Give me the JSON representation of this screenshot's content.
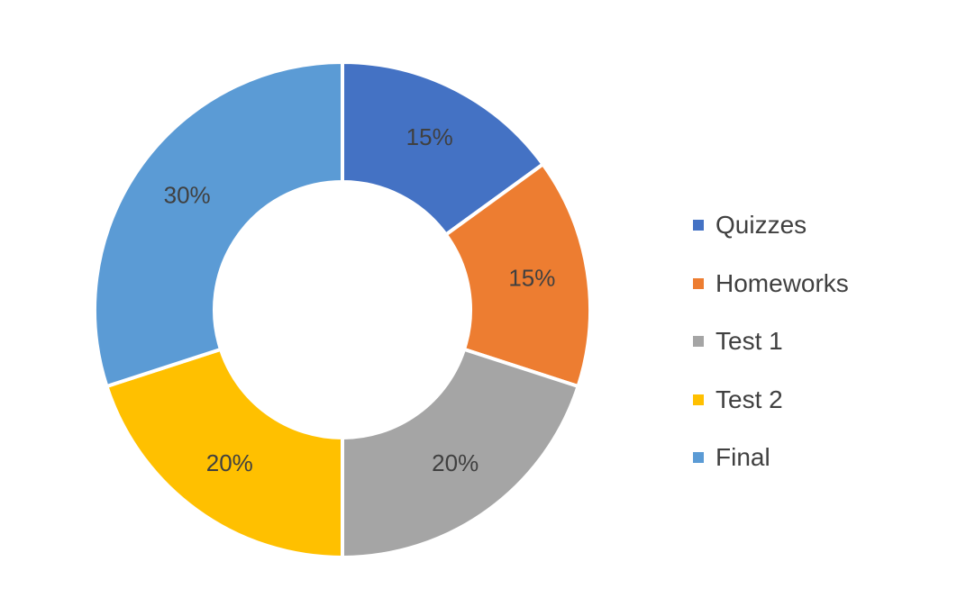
{
  "chart_data": {
    "type": "pie",
    "style": "doughnut",
    "title": "",
    "categories": [
      "Quizzes",
      "Homeworks",
      "Test 1",
      "Test 2",
      "Final"
    ],
    "values": [
      15,
      15,
      20,
      20,
      30
    ],
    "data_labels": [
      "15%",
      "15%",
      "20%",
      "20%",
      "30%"
    ],
    "colors": [
      "#4472C4",
      "#ED7D31",
      "#A5A5A5",
      "#FFC000",
      "#5B9BD5"
    ],
    "legend_position": "right"
  }
}
